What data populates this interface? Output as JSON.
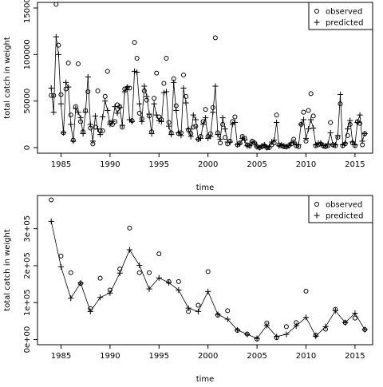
{
  "chart_data": [
    {
      "type": "scatter",
      "title": "",
      "xlabel": "time",
      "ylabel": "total catch in weight",
      "xlim": [
        1982.6,
        2016.8
      ],
      "ylim": [
        -6000,
        156000
      ],
      "xticks": [
        1985,
        1990,
        1995,
        2000,
        2005,
        2010,
        2015
      ],
      "yticks": [
        0,
        50000,
        100000,
        150000
      ],
      "ytick_labels": [
        "0",
        "50000",
        "100000",
        "150000"
      ],
      "legend": {
        "position": "top-right",
        "entries": [
          "observed",
          "predicted"
        ]
      },
      "series": [
        {
          "name": "observed",
          "marker": "circle",
          "x": [
            1984.0,
            1984.25,
            1984.5,
            1984.75,
            1985.0,
            1985.25,
            1985.5,
            1985.75,
            1986.0,
            1986.25,
            1986.5,
            1986.75,
            1987.0,
            1987.25,
            1987.5,
            1987.75,
            1988.0,
            1988.25,
            1988.5,
            1988.75,
            1989.0,
            1989.25,
            1989.5,
            1989.75,
            1990.0,
            1990.25,
            1990.5,
            1990.75,
            1991.0,
            1991.25,
            1991.5,
            1991.75,
            1992.0,
            1992.25,
            1992.5,
            1992.75,
            1993.0,
            1993.25,
            1993.5,
            1993.75,
            1994.0,
            1994.25,
            1994.5,
            1994.75,
            1995.0,
            1995.25,
            1995.5,
            1995.75,
            1996.0,
            1996.25,
            1996.5,
            1996.75,
            1997.0,
            1997.25,
            1997.5,
            1997.75,
            1998.0,
            1998.25,
            1998.5,
            1998.75,
            1999.0,
            1999.25,
            1999.5,
            1999.75,
            2000.0,
            2000.25,
            2000.5,
            2000.75,
            2001.0,
            2001.25,
            2001.5,
            2001.75,
            2002.0,
            2002.25,
            2002.5,
            2002.75,
            2003.0,
            2003.25,
            2003.5,
            2003.75,
            2004.0,
            2004.25,
            2004.5,
            2004.75,
            2005.0,
            2005.25,
            2005.5,
            2005.75,
            2006.0,
            2006.25,
            2006.5,
            2006.75,
            2007.0,
            2007.25,
            2007.5,
            2007.75,
            2008.0,
            2008.25,
            2008.5,
            2008.75,
            2009.0,
            2009.25,
            2009.5,
            2009.75,
            2010.0,
            2010.25,
            2010.5,
            2010.75,
            2011.0,
            2011.25,
            2011.5,
            2011.75,
            2012.0,
            2012.25,
            2012.5,
            2012.75,
            2013.0,
            2013.25,
            2013.5,
            2013.75,
            2014.0,
            2014.25,
            2014.5,
            2014.75,
            2015.0,
            2015.25,
            2015.5,
            2015.75,
            2016.0
          ],
          "y": [
            56000,
            56000,
            154000,
            110000,
            57000,
            16000,
            63000,
            91000,
            35000,
            8000,
            44000,
            90000,
            28000,
            17000,
            40000,
            60000,
            21000,
            4000,
            22000,
            61000,
            18000,
            18000,
            55000,
            82000,
            27000,
            25000,
            28000,
            46000,
            44000,
            22000,
            63000,
            64000,
            64000,
            29000,
            113000,
            96000,
            37000,
            31000,
            61000,
            51000,
            34000,
            17000,
            53000,
            80000,
            33000,
            30000,
            69000,
            96000,
            27000,
            16000,
            74000,
            45000,
            15000,
            16000,
            78000,
            55000,
            19000,
            15000,
            22000,
            23000,
            9000,
            12000,
            28000,
            41000,
            12000,
            15000,
            43000,
            118000,
            16000,
            5000,
            25000,
            11000,
            4000,
            7000,
            28000,
            33000,
            3000,
            5000,
            12000,
            10000,
            3000,
            2000,
            7000,
            5000,
            1000,
            0,
            1000,
            2000,
            0,
            0,
            3000,
            5000,
            35000,
            3000,
            2000,
            1000,
            1000,
            2000,
            4000,
            9000,
            2000,
            1000,
            25000,
            38000,
            7000,
            40000,
            58000,
            34000,
            2000,
            3000,
            4000,
            2000,
            1000,
            2000,
            27000,
            3000,
            2000,
            11000,
            47000,
            2000,
            4000,
            13000,
            25000,
            5000,
            2000,
            28000,
            26000,
            3000,
            15000
          ],
          "values_note": ""
        },
        {
          "name": "predicted",
          "marker": "plus",
          "x": [
            1984.0,
            1984.25,
            1984.5,
            1984.75,
            1985.0,
            1985.25,
            1985.5,
            1985.75,
            1986.0,
            1986.25,
            1986.5,
            1986.75,
            1987.0,
            1987.25,
            1987.5,
            1987.75,
            1988.0,
            1988.25,
            1988.5,
            1988.75,
            1989.0,
            1989.25,
            1989.5,
            1989.75,
            1990.0,
            1990.25,
            1990.5,
            1990.75,
            1991.0,
            1991.25,
            1991.5,
            1991.75,
            1992.0,
            1992.25,
            1992.5,
            1992.75,
            1993.0,
            1993.25,
            1993.5,
            1993.75,
            1994.0,
            1994.25,
            1994.5,
            1994.75,
            1995.0,
            1995.25,
            1995.5,
            1995.75,
            1996.0,
            1996.25,
            1996.5,
            1996.75,
            1997.0,
            1997.25,
            1997.5,
            1997.75,
            1998.0,
            1998.25,
            1998.5,
            1998.75,
            1999.0,
            1999.25,
            1999.5,
            1999.75,
            2000.0,
            2000.25,
            2000.5,
            2000.75,
            2001.0,
            2001.25,
            2001.5,
            2001.75,
            2002.0,
            2002.25,
            2002.5,
            2002.75,
            2003.0,
            2003.25,
            2003.5,
            2003.75,
            2004.0,
            2004.25,
            2004.5,
            2004.75,
            2005.0,
            2005.25,
            2005.5,
            2005.75,
            2006.0,
            2006.25,
            2006.5,
            2006.75,
            2007.0,
            2007.25,
            2007.5,
            2007.75,
            2008.0,
            2008.25,
            2008.5,
            2008.75,
            2009.0,
            2009.25,
            2009.5,
            2009.75,
            2010.0,
            2010.25,
            2010.5,
            2010.75,
            2011.0,
            2011.25,
            2011.5,
            2011.75,
            2012.0,
            2012.25,
            2012.5,
            2012.75,
            2013.0,
            2013.25,
            2013.5,
            2013.75,
            2014.0,
            2014.25,
            2014.5,
            2014.75,
            2015.0,
            2015.25,
            2015.5,
            2015.75,
            2016.0
          ],
          "y": [
            64000,
            38000,
            119000,
            100000,
            47000,
            16000,
            70000,
            65000,
            25000,
            7000,
            42000,
            38000,
            32000,
            15000,
            38000,
            76000,
            25000,
            7000,
            34000,
            20000,
            14000,
            33000,
            50000,
            40000,
            25000,
            28000,
            44000,
            37000,
            43000,
            24000,
            60000,
            65000,
            30000,
            28000,
            82000,
            81000,
            47000,
            28000,
            66000,
            55000,
            36000,
            15000,
            47000,
            35000,
            29000,
            28000,
            59000,
            60000,
            23000,
            14000,
            70000,
            40000,
            16000,
            13000,
            64000,
            48000,
            20000,
            12000,
            35000,
            30000,
            9000,
            10000,
            25000,
            32000,
            10000,
            12000,
            38000,
            66000,
            14000,
            9000,
            32000,
            20000,
            6000,
            6000,
            25000,
            27000,
            3000,
            4000,
            10000,
            8000,
            2000,
            2000,
            6000,
            5000,
            1000,
            0,
            2000,
            3000,
            0,
            1000,
            6000,
            8000,
            27000,
            2000,
            3000,
            2000,
            1000,
            2000,
            5000,
            6000,
            3000,
            3000,
            25000,
            30000,
            10000,
            20000,
            30000,
            21000,
            3000,
            5000,
            5000,
            2000,
            2000,
            4000,
            16000,
            3000,
            3000,
            13000,
            57000,
            3000,
            5000,
            20000,
            29000,
            6000,
            3000,
            27000,
            35000,
            7000,
            15000
          ]
        }
      ]
    },
    {
      "type": "scatter",
      "title": "",
      "xlabel": "time",
      "ylabel": "total catch in weight",
      "xlim": [
        1982.6,
        2016.8
      ],
      "ylim": [
        -14000,
        390000
      ],
      "xticks": [
        1985,
        1990,
        1995,
        2000,
        2005,
        2010,
        2015
      ],
      "yticks": [
        0,
        100000,
        200000,
        300000
      ],
      "ytick_labels": [
        "0e+00",
        "1e+05",
        "2e+05",
        "3e+05"
      ],
      "legend": {
        "position": "top-right",
        "entries": [
          "observed",
          "predicted"
        ]
      },
      "series": [
        {
          "name": "observed",
          "marker": "circle",
          "x": [
            1984,
            1985,
            1986,
            1987,
            1988,
            1989,
            1990,
            1991,
            1992,
            1993,
            1994,
            1995,
            1996,
            1997,
            1998,
            1999,
            2000,
            2001,
            2002,
            2003,
            2004,
            2005,
            2006,
            2007,
            2008,
            2009,
            2010,
            2011,
            2012,
            2013,
            2014,
            2015,
            2016
          ],
          "y": [
            378000,
            226000,
            181000,
            152000,
            84000,
            166000,
            134000,
            191000,
            302000,
            181000,
            181000,
            232000,
            157000,
            157000,
            76000,
            93000,
            184000,
            66000,
            78000,
            25000,
            15000,
            1000,
            45000,
            5000,
            35000,
            46000,
            131000,
            12000,
            28000,
            82000,
            46000,
            58000,
            27000
          ]
        },
        {
          "name": "predicted",
          "marker": "plus",
          "x": [
            1984,
            1985,
            1986,
            1987,
            1988,
            1989,
            1990,
            1991,
            1992,
            1993,
            1994,
            1995,
            1996,
            1997,
            1998,
            1999,
            2000,
            2001,
            2002,
            2003,
            2004,
            2005,
            2006,
            2007,
            2008,
            2009,
            2010,
            2011,
            2012,
            2013,
            2014,
            2015,
            2016
          ],
          "y": [
            320000,
            197000,
            112000,
            153000,
            76000,
            114000,
            126000,
            180000,
            243000,
            201000,
            137000,
            167000,
            154000,
            134000,
            85000,
            76000,
            130000,
            68000,
            55000,
            26000,
            14000,
            3000,
            38000,
            8000,
            14000,
            37000,
            60000,
            9000,
            35000,
            78000,
            46000,
            71000,
            27000
          ]
        }
      ]
    }
  ]
}
